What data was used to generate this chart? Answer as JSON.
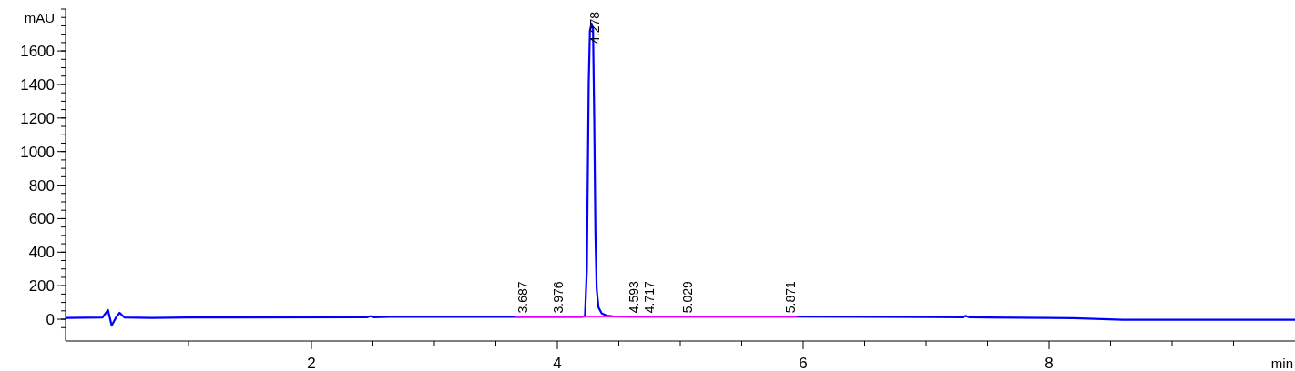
{
  "chart_data": {
    "type": "line",
    "xlabel": "min",
    "ylabel": "mAU",
    "xlim": [
      0,
      10
    ],
    "ylim": [
      -130,
      1850
    ],
    "xticks": [
      {
        "value": 0.5,
        "label": null
      },
      {
        "value": 1,
        "label": null
      },
      {
        "value": 1.5,
        "label": null
      },
      2,
      {
        "value": 2.5,
        "label": null
      },
      {
        "value": 3,
        "label": null
      },
      {
        "value": 3.5,
        "label": null
      },
      4,
      {
        "value": 4.5,
        "label": null
      },
      {
        "value": 5,
        "label": null
      },
      {
        "value": 5.5,
        "label": null
      },
      6,
      {
        "value": 6.5,
        "label": null
      },
      {
        "value": 7,
        "label": null
      },
      {
        "value": 7.5,
        "label": null
      },
      8,
      {
        "value": 8.5,
        "label": null
      },
      {
        "value": 9,
        "label": null
      },
      {
        "value": 9.5,
        "label": null
      }
    ],
    "yticks": [
      0,
      200,
      400,
      600,
      800,
      1000,
      1200,
      1400,
      1600
    ],
    "series": [
      {
        "color": "#0000ff",
        "x": [
          0,
          0.3,
          0.32,
          0.345,
          0.375,
          0.41,
          0.44,
          0.48,
          0.7,
          1.0,
          2.45,
          2.48,
          2.51,
          2.7,
          4.2,
          4.225,
          4.24,
          4.255,
          4.265,
          4.278,
          4.29,
          4.3,
          4.31,
          4.32,
          4.335,
          4.36,
          4.4,
          4.45,
          4.6,
          5.8,
          6.5,
          7.0,
          7.3,
          7.32,
          7.35,
          7.5,
          8.0,
          8.2,
          8.6,
          10
        ],
        "values": [
          8,
          10,
          30,
          55,
          -38,
          10,
          38,
          10,
          8,
          10,
          12,
          18,
          12,
          15,
          14,
          20,
          300,
          1400,
          1720,
          1764,
          1740,
          1200,
          500,
          180,
          70,
          35,
          22,
          17,
          15,
          15,
          14,
          13,
          12,
          20,
          12,
          10,
          8,
          6,
          -3,
          -3
        ]
      },
      {
        "color": "#ff00ff",
        "x": [
          3.65,
          5.95
        ],
        "values": [
          13,
          13
        ]
      }
    ],
    "annotations": [
      {
        "text": "3.687",
        "x": 3.687,
        "y": 14
      },
      {
        "text": "3.976",
        "x": 3.976,
        "y": 14
      },
      {
        "text": "4.278",
        "x": 4.278,
        "y": 1764
      },
      {
        "text": "4.593",
        "x": 4.593,
        "y": 15
      },
      {
        "text": "4.717",
        "x": 4.717,
        "y": 15
      },
      {
        "text": "5.029",
        "x": 5.029,
        "y": 15
      },
      {
        "text": "5.871",
        "x": 5.871,
        "y": 15
      }
    ]
  }
}
